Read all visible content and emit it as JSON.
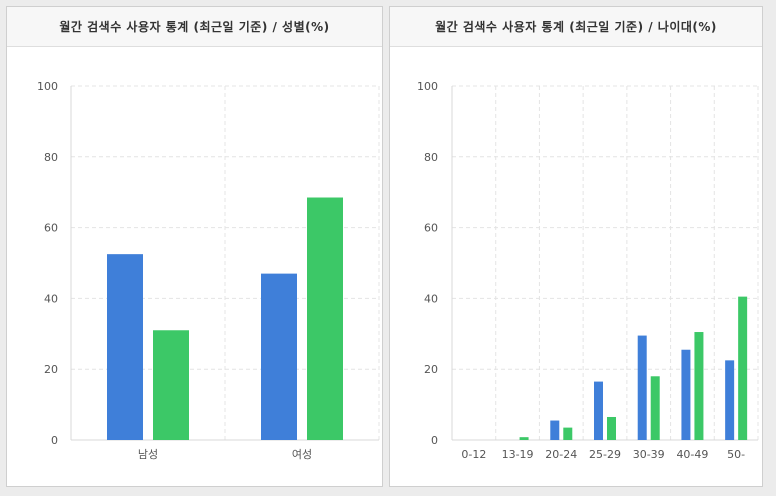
{
  "colors": {
    "series1": "#3f7fd9",
    "series2": "#3cc867"
  },
  "chart_data": [
    {
      "type": "bar",
      "title": "월간 검색수 사용자 통계 (최근일 기준) / 성별(%)",
      "categories": [
        "남성",
        "여성"
      ],
      "series": [
        {
          "values": [
            52.5,
            47
          ]
        },
        {
          "values": [
            31,
            68.5
          ]
        }
      ],
      "ylim": [
        0,
        100
      ],
      "yticks": [
        "0",
        "20",
        "40",
        "60",
        "80",
        "100"
      ],
      "grid": true
    },
    {
      "type": "bar",
      "title": "월간 검색수 사용자 통계 (최근일 기준) / 나이대(%)",
      "categories": [
        "0-12",
        "13-19",
        "20-24",
        "25-29",
        "30-39",
        "40-49",
        "50-"
      ],
      "series": [
        {
          "values": [
            0,
            0,
            5.5,
            16.5,
            29.5,
            25.5,
            22.5
          ]
        },
        {
          "values": [
            0,
            0.8,
            3.5,
            6.5,
            18,
            30.5,
            40.5
          ]
        }
      ],
      "ylim": [
        0,
        100
      ],
      "yticks": [
        "0",
        "20",
        "40",
        "60",
        "80",
        "100"
      ],
      "grid": true
    }
  ]
}
